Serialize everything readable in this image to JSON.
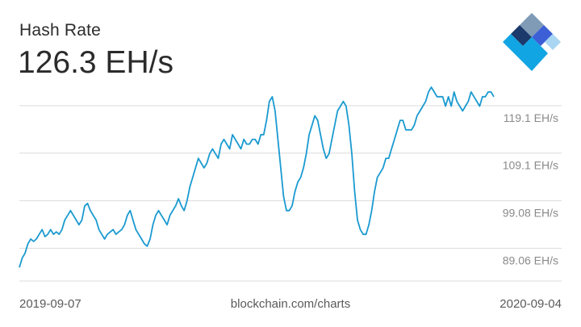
{
  "header": {
    "title": "Hash Rate",
    "current_value": "126.3 EH/s"
  },
  "footer": {
    "start_date": "2019-09-07",
    "source": "blockchain.com/charts",
    "end_date": "2020-09-04"
  },
  "logo": {
    "icon": "blockchain-logo-icon",
    "colors": [
      "#1b3a6b",
      "#7f9bb6",
      "#3d5fd6",
      "#12a5e3",
      "#a9d6f2"
    ]
  },
  "colors": {
    "line": "#1a9ad0",
    "grid": "#dcdcdc",
    "tick_text": "#8a8a8a"
  },
  "chart_data": {
    "type": "line",
    "title": "Hash Rate",
    "xlabel": "",
    "ylabel": "",
    "x_start": "2019-09-07",
    "x_end": "2020-09-04",
    "ylim": [
      82.5,
      123.0
    ],
    "grid": true,
    "yticks": [
      89.06,
      99.08,
      109.1,
      119.1
    ],
    "ytick_labels": [
      "89.06 EH/s",
      "99.08 EH/s",
      "109.1 EH/s",
      "119.1 EH/s"
    ],
    "series": [
      {
        "values": [
          85,
          87,
          88,
          90,
          91,
          90.5,
          91,
          92,
          93,
          91.5,
          92,
          93,
          92,
          92.5,
          92,
          93,
          95,
          96,
          97,
          96,
          95,
          94,
          95,
          98,
          98.5,
          97,
          96,
          95,
          93,
          92,
          91,
          92,
          92.5,
          93,
          92,
          92.5,
          93,
          94,
          96,
          97,
          95,
          93,
          92,
          91,
          90,
          89.5,
          91,
          94,
          96,
          97,
          96,
          95,
          94,
          96,
          97,
          98,
          99.5,
          98,
          97,
          99,
          102,
          104,
          106,
          108,
          107,
          106,
          107,
          109,
          110,
          109,
          108,
          111,
          112,
          111,
          110,
          113,
          112,
          111,
          110,
          112,
          111,
          111,
          112,
          112,
          111,
          113,
          113,
          116,
          120,
          121,
          118,
          112,
          106,
          100,
          97,
          97,
          98,
          101,
          103,
          104,
          106,
          109,
          113,
          115,
          117,
          116,
          113,
          110,
          108,
          109,
          112,
          115,
          118,
          119,
          120,
          119,
          115,
          109,
          101,
          95,
          93,
          92,
          92,
          94,
          97,
          101,
          104,
          105,
          106,
          108,
          108,
          110,
          112,
          114,
          116,
          116,
          114,
          114,
          114,
          115,
          117,
          118,
          119,
          120,
          122,
          123,
          122,
          121,
          121,
          121,
          119,
          121,
          119,
          122,
          120,
          119,
          118,
          119,
          120,
          122,
          121,
          120,
          119,
          121,
          121,
          122,
          122,
          121
        ]
      }
    ]
  }
}
